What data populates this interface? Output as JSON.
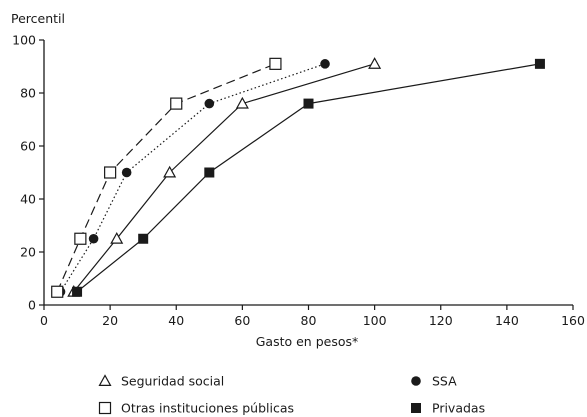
{
  "chart_data": {
    "type": "line",
    "ylabel": "Percentil",
    "xlabel": "Gasto en pesos*",
    "xlim": [
      0,
      160
    ],
    "ylim": [
      0,
      100
    ],
    "xticks": [
      0,
      20,
      40,
      60,
      80,
      100,
      120,
      140,
      160
    ],
    "yticks": [
      0,
      20,
      40,
      60,
      80,
      100
    ],
    "grid": false,
    "legend_position": "bottom",
    "series": [
      {
        "name": "Seguridad social",
        "marker": "open-triangle",
        "line": "solid",
        "color": "#1a1a1a",
        "points": [
          [
            9,
            5
          ],
          [
            22,
            25
          ],
          [
            38,
            50
          ],
          [
            60,
            76
          ],
          [
            100,
            91
          ]
        ]
      },
      {
        "name": "SSA",
        "marker": "filled-circle",
        "line": "dotted",
        "color": "#1a1a1a",
        "points": [
          [
            5,
            5
          ],
          [
            15,
            25
          ],
          [
            25,
            50
          ],
          [
            50,
            76
          ],
          [
            85,
            91
          ]
        ]
      },
      {
        "name": "Otras instituciones públicas",
        "marker": "open-square",
        "line": "dashed",
        "color": "#1a1a1a",
        "points": [
          [
            4,
            5
          ],
          [
            11,
            25
          ],
          [
            20,
            50
          ],
          [
            40,
            76
          ],
          [
            70,
            91
          ]
        ]
      },
      {
        "name": "Privadas",
        "marker": "filled-square",
        "line": "solid",
        "color": "#1a1a1a",
        "points": [
          [
            10,
            5
          ],
          [
            30,
            25
          ],
          [
            50,
            50
          ],
          [
            80,
            76
          ],
          [
            150,
            91
          ]
        ]
      }
    ]
  }
}
